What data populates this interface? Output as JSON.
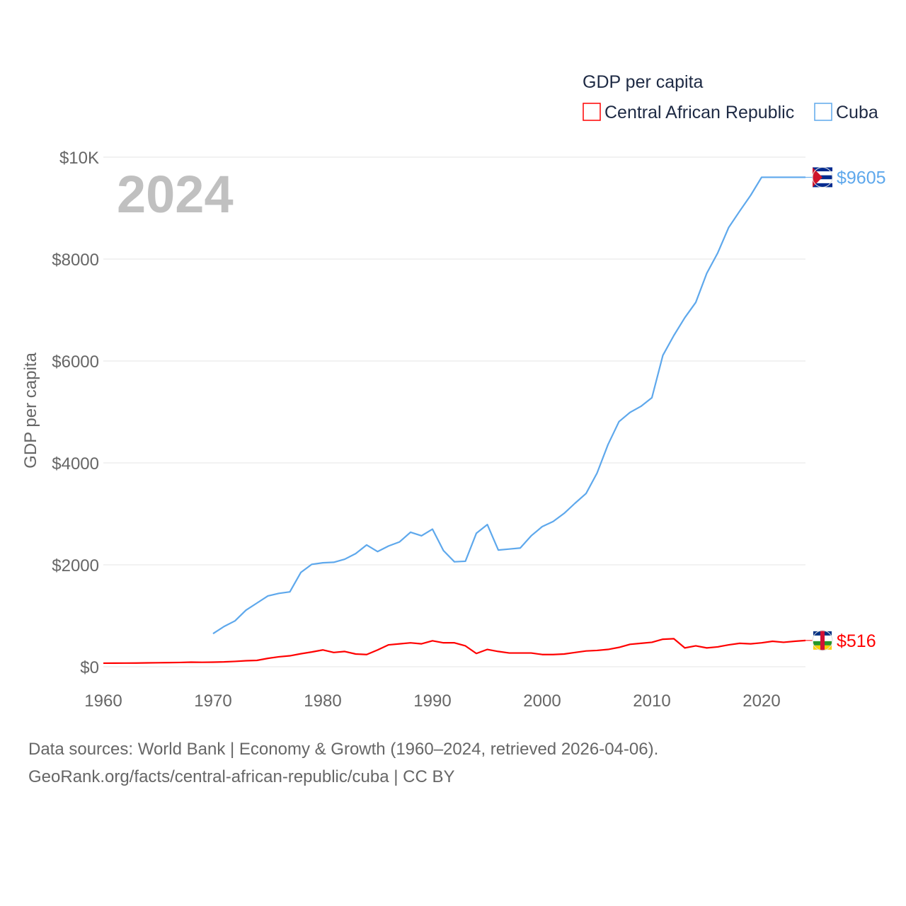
{
  "chart_data": {
    "type": "line",
    "year_label": "2024",
    "ylabel": "GDP per capita",
    "legend_title": "GDP per capita",
    "legend_position": "top-right",
    "xlim": [
      1960,
      2024
    ],
    "ylim": [
      0,
      10000
    ],
    "x_ticks": [
      1960,
      1970,
      1980,
      1990,
      2000,
      2010,
      2020
    ],
    "y_ticks": [
      {
        "v": 0,
        "label": "$0"
      },
      {
        "v": 2000,
        "label": "$2000"
      },
      {
        "v": 4000,
        "label": "$4000"
      },
      {
        "v": 6000,
        "label": "$6000"
      },
      {
        "v": 8000,
        "label": "$8000"
      },
      {
        "v": 10000,
        "label": "$10K"
      }
    ],
    "grid": true,
    "series": [
      {
        "name": "Central African Republic",
        "color": "#ff0000",
        "end_label": "$516",
        "start_year": 1960,
        "values": [
          70,
          71,
          72,
          73,
          76,
          79,
          82,
          84,
          90,
          88,
          90,
          95,
          105,
          118,
          125,
          165,
          195,
          215,
          255,
          290,
          330,
          280,
          300,
          250,
          240,
          330,
          430,
          450,
          470,
          450,
          510,
          470,
          470,
          410,
          260,
          340,
          300,
          270,
          270,
          270,
          240,
          240,
          250,
          280,
          310,
          320,
          340,
          380,
          440,
          460,
          480,
          540,
          550,
          370,
          410,
          370,
          390,
          430,
          460,
          450,
          470,
          500,
          480,
          500,
          516
        ]
      },
      {
        "name": "Cuba",
        "color": "#5ea8ec",
        "end_label": "$9605",
        "start_year": 1970,
        "values": [
          650,
          790,
          900,
          1110,
          1250,
          1390,
          1440,
          1470,
          1850,
          2010,
          2040,
          2050,
          2110,
          2220,
          2390,
          2260,
          2370,
          2450,
          2640,
          2570,
          2700,
          2280,
          2060,
          2070,
          2620,
          2790,
          2290,
          2310,
          2330,
          2570,
          2750,
          2850,
          3010,
          3210,
          3400,
          3800,
          4360,
          4810,
          4990,
          5110,
          5280,
          6110,
          6500,
          6850,
          7150,
          7720,
          8120,
          8620,
          8940,
          9250,
          9605,
          9605,
          9605,
          9605,
          9605
        ]
      }
    ]
  },
  "footer": {
    "line1": "Data sources: World Bank | Economy & Growth (1960–2024, retrieved 2026-04-06).",
    "line2": "GeoRank.org/facts/central-african-republic/cuba | CC BY"
  }
}
